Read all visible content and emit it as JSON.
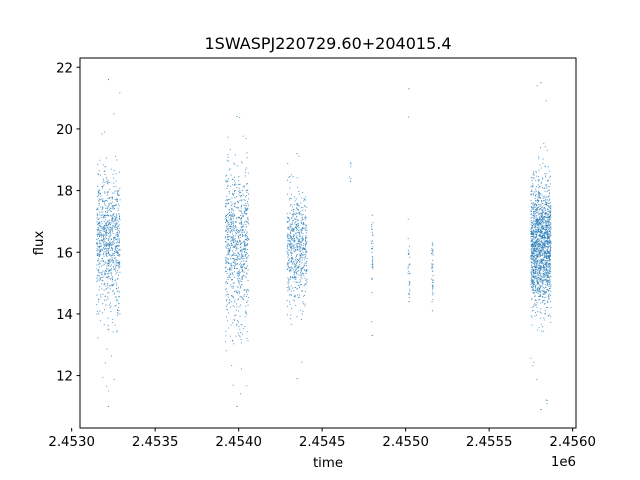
{
  "chart_data": {
    "type": "scatter",
    "title": "1SWASPJ220729.60+204015.4",
    "xlabel": "time",
    "ylabel": "flux",
    "x_offset_label": "1e6",
    "xlim": [
      2.45305,
      2.45602
    ],
    "ylim": [
      10.3,
      22.3
    ],
    "x_ticks": [
      2.453,
      2.4535,
      2.454,
      2.4545,
      2.455,
      2.4555,
      2.456
    ],
    "x_tick_labels": [
      "2.4530",
      "2.4535",
      "2.4540",
      "2.4545",
      "2.4550",
      "2.4555",
      "2.4560"
    ],
    "y_ticks": [
      12,
      14,
      16,
      18,
      20,
      22
    ],
    "y_tick_labels": [
      "12",
      "14",
      "16",
      "18",
      "20",
      "22"
    ],
    "grid": false,
    "legend": "none",
    "point_color": "#1f77b4",
    "clusters": [
      {
        "x_center": 2.45322,
        "x_width": 7e-05,
        "y_center": 16.3,
        "y_spread": 1.1,
        "y_min": 11.0,
        "y_max": 21.6,
        "count": 850
      },
      {
        "x_center": 2.45399,
        "x_width": 7e-05,
        "y_center": 16.2,
        "y_spread": 1.2,
        "y_min": 11.0,
        "y_max": 20.4,
        "count": 800
      },
      {
        "x_center": 2.45435,
        "x_width": 6e-05,
        "y_center": 16.2,
        "y_spread": 0.9,
        "y_min": 11.9,
        "y_max": 19.2,
        "count": 600
      },
      {
        "x_center": 2.45467,
        "x_width": 5e-06,
        "y_center": 18.6,
        "y_spread": 0.25,
        "y_min": 18.3,
        "y_max": 18.9,
        "count": 4
      },
      {
        "x_center": 2.4548,
        "x_width": 5e-06,
        "y_center": 15.8,
        "y_spread": 0.6,
        "y_min": 13.3,
        "y_max": 17.2,
        "count": 35
      },
      {
        "x_center": 2.45502,
        "x_width": 6e-06,
        "y_center": 15.4,
        "y_spread": 0.7,
        "y_min": 14.4,
        "y_max": 21.3,
        "count": 30
      },
      {
        "x_center": 2.45516,
        "x_width": 5e-06,
        "y_center": 15.3,
        "y_spread": 0.6,
        "y_min": 14.1,
        "y_max": 16.3,
        "count": 40
      },
      {
        "x_center": 2.45581,
        "x_width": 6e-05,
        "y_center": 16.2,
        "y_spread": 1.0,
        "y_min": 10.9,
        "y_max": 21.5,
        "count": 1600
      }
    ]
  }
}
